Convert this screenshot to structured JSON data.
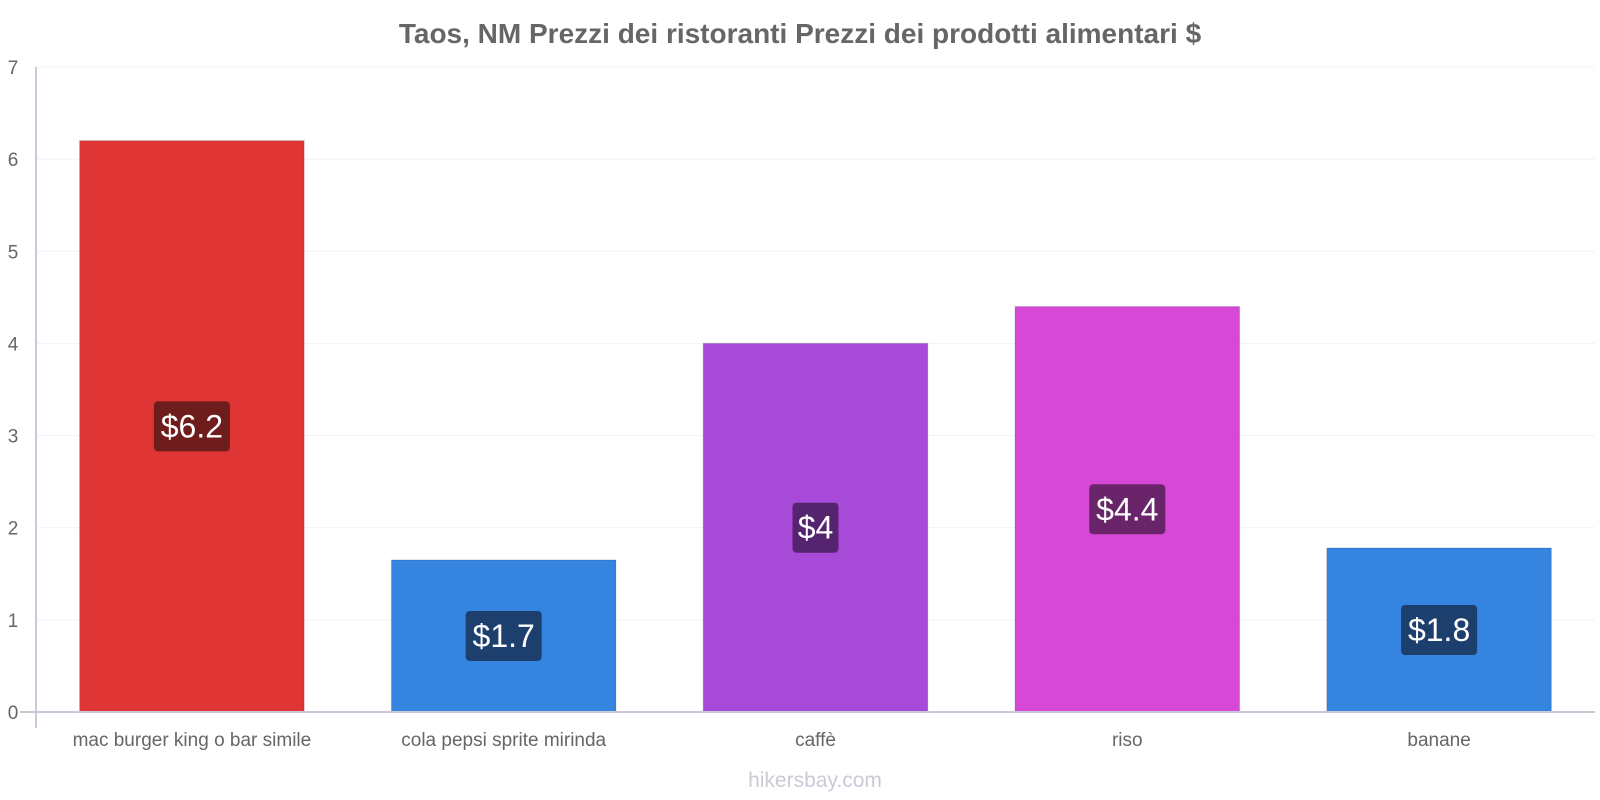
{
  "chart_data": {
    "type": "bar",
    "title": "Taos, NM Prezzi dei ristoranti Prezzi dei prodotti alimentari $",
    "categories": [
      "mac burger king o bar simile",
      "cola pepsi sprite mirinda",
      "caffè",
      "riso",
      "banane"
    ],
    "values": [
      6.2,
      1.65,
      4.0,
      4.4,
      1.78
    ],
    "value_labels": [
      "$6.2",
      "$1.7",
      "$4",
      "$4.4",
      "$1.8"
    ],
    "bar_colors": [
      "#e03535",
      "#3584e0",
      "#a84ad8",
      "#d648d6",
      "#3584e0"
    ],
    "label_colors": [
      "#6e1c1c",
      "#1c3f6e",
      "#55246e",
      "#6a246a",
      "#1c3f6e"
    ],
    "yticks": [
      "0",
      "1",
      "2",
      "3",
      "4",
      "5",
      "6",
      "7"
    ],
    "ylim": [
      0,
      7
    ],
    "xlabel": "",
    "ylabel": "",
    "grid": true
  },
  "footer": {
    "credit": "hikersbay.com"
  }
}
